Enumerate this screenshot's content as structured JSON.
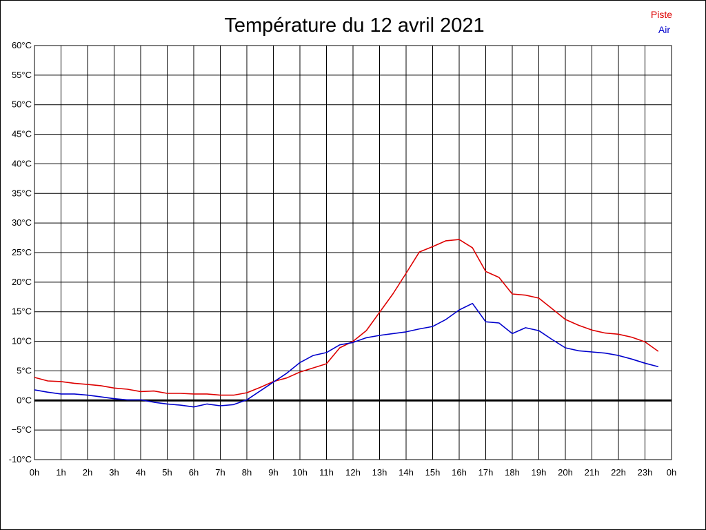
{
  "chart_data": {
    "type": "line",
    "title": "Température du 12 avril 2021",
    "xlabel": "",
    "ylabel": "",
    "ylim": [
      -10,
      60
    ],
    "xlim": [
      0,
      24
    ],
    "y_ticks": [
      "60°C",
      "55°C",
      "50°C",
      "45°C",
      "40°C",
      "35°C",
      "30°C",
      "25°C",
      "20°C",
      "15°C",
      "10°C",
      "5°C",
      "0°C",
      "−5°C",
      "-10°C"
    ],
    "y_tick_values": [
      60,
      55,
      50,
      45,
      40,
      35,
      30,
      25,
      20,
      15,
      10,
      5,
      0,
      -5,
      -10
    ],
    "x_ticks": [
      "0h",
      "1h",
      "2h",
      "3h",
      "4h",
      "5h",
      "6h",
      "7h",
      "8h",
      "9h",
      "10h",
      "11h",
      "12h",
      "13h",
      "14h",
      "15h",
      "16h",
      "17h",
      "18h",
      "19h",
      "20h",
      "21h",
      "22h",
      "23h",
      "0h"
    ],
    "grid": true,
    "legend_position": "top-right",
    "x": [
      0,
      0.5,
      1,
      1.5,
      2,
      2.5,
      3,
      3.5,
      4,
      4.5,
      5,
      5.5,
      6,
      6.5,
      7,
      7.5,
      8,
      8.5,
      9,
      9.5,
      10,
      10.5,
      11,
      11.5,
      12,
      12.5,
      13,
      13.5,
      14,
      14.5,
      15,
      15.5,
      16,
      16.5,
      17,
      17.5,
      18,
      18.5,
      19,
      19.5,
      20,
      20.5,
      21,
      21.5,
      22,
      22.5,
      23,
      23.5
    ],
    "series": [
      {
        "name": "Piste",
        "color": "#dd0000",
        "values": [
          3.9,
          3.3,
          3.2,
          2.9,
          2.7,
          2.5,
          2.1,
          1.9,
          1.5,
          1.6,
          1.2,
          1.2,
          1.1,
          1.1,
          0.9,
          0.9,
          1.3,
          2.2,
          3.2,
          3.8,
          4.8,
          5.5,
          6.2,
          8.9,
          10,
          11.8,
          14.9,
          18,
          21.5,
          25.1,
          26,
          27,
          27.2,
          25.8,
          21.8,
          20.8,
          18,
          17.8,
          17.3,
          15.5,
          13.7,
          12.7,
          11.9,
          11.4,
          11.2,
          10.7,
          9.9,
          8.3
        ]
      },
      {
        "name": "Air",
        "color": "#0000cc",
        "values": [
          1.8,
          1.4,
          1.1,
          1.1,
          0.9,
          0.6,
          0.3,
          0.1,
          0.1,
          -0.3,
          -0.6,
          -0.8,
          -1.1,
          -0.6,
          -0.9,
          -0.7,
          0.1,
          1.6,
          3.1,
          4.6,
          6.4,
          7.6,
          8.1,
          9.4,
          9.8,
          10.6,
          11,
          11.3,
          11.6,
          12.1,
          12.5,
          13.7,
          15.3,
          16.4,
          13.3,
          13.1,
          11.3,
          12.3,
          11.8,
          10.3,
          8.9,
          8.4,
          8.2,
          8,
          7.6,
          7,
          6.3,
          5.7
        ]
      }
    ]
  }
}
